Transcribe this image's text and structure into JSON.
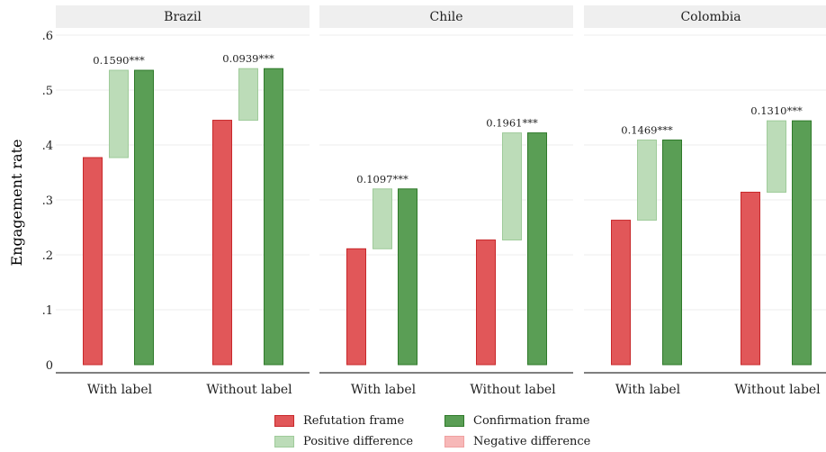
{
  "chart_data": {
    "type": "bar",
    "ylabel": "Engagement rate",
    "ylim": [
      0,
      0.6
    ],
    "yticks": [
      0,
      0.1,
      0.2,
      0.3,
      0.4,
      0.5,
      0.6
    ],
    "ytick_labels": [
      "0",
      ".1",
      ".2",
      ".3",
      ".4",
      ".5",
      ".6"
    ],
    "categories": [
      "With label",
      "Without label"
    ],
    "panels": [
      {
        "name": "Brazil",
        "groups": [
          {
            "category": "With label",
            "refutation": 0.377,
            "confirmation": 0.536,
            "difference": "0.1590***",
            "direction": "positive"
          },
          {
            "category": "Without label",
            "refutation": 0.445,
            "confirmation": 0.539,
            "difference": "0.0939***",
            "direction": "positive"
          }
        ]
      },
      {
        "name": "Chile",
        "groups": [
          {
            "category": "With label",
            "refutation": 0.211,
            "confirmation": 0.32,
            "difference": "0.1097***",
            "direction": "positive"
          },
          {
            "category": "Without label",
            "refutation": 0.227,
            "confirmation": 0.422,
            "difference": "0.1961***",
            "direction": "positive"
          }
        ]
      },
      {
        "name": "Colombia",
        "groups": [
          {
            "category": "With label",
            "refutation": 0.263,
            "confirmation": 0.409,
            "difference": "0.1469***",
            "direction": "positive"
          },
          {
            "category": "Without label",
            "refutation": 0.314,
            "confirmation": 0.444,
            "difference": "0.1310***",
            "direction": "positive"
          }
        ]
      }
    ],
    "legend": {
      "position": "bottom",
      "items": [
        {
          "label": "Refutation frame",
          "key": "refutation"
        },
        {
          "label": "Confirmation frame",
          "key": "confirmation"
        },
        {
          "label": "Positive difference",
          "key": "positive"
        },
        {
          "label": "Negative difference",
          "key": "negative"
        }
      ]
    },
    "grid": true
  },
  "colors": {
    "refutation": "#e15759",
    "refutation_stroke": "#c8282b",
    "confirmation": "#5a9e55",
    "confirmation_stroke": "#2f7a2a",
    "positive": "#bcdcb8",
    "positive_stroke": "#9fcb9a",
    "negative": "#f7b8b8",
    "negative_stroke": "#f0a0a0",
    "strip": "#efefef",
    "grid": "#ececec",
    "axis": "#333333"
  }
}
